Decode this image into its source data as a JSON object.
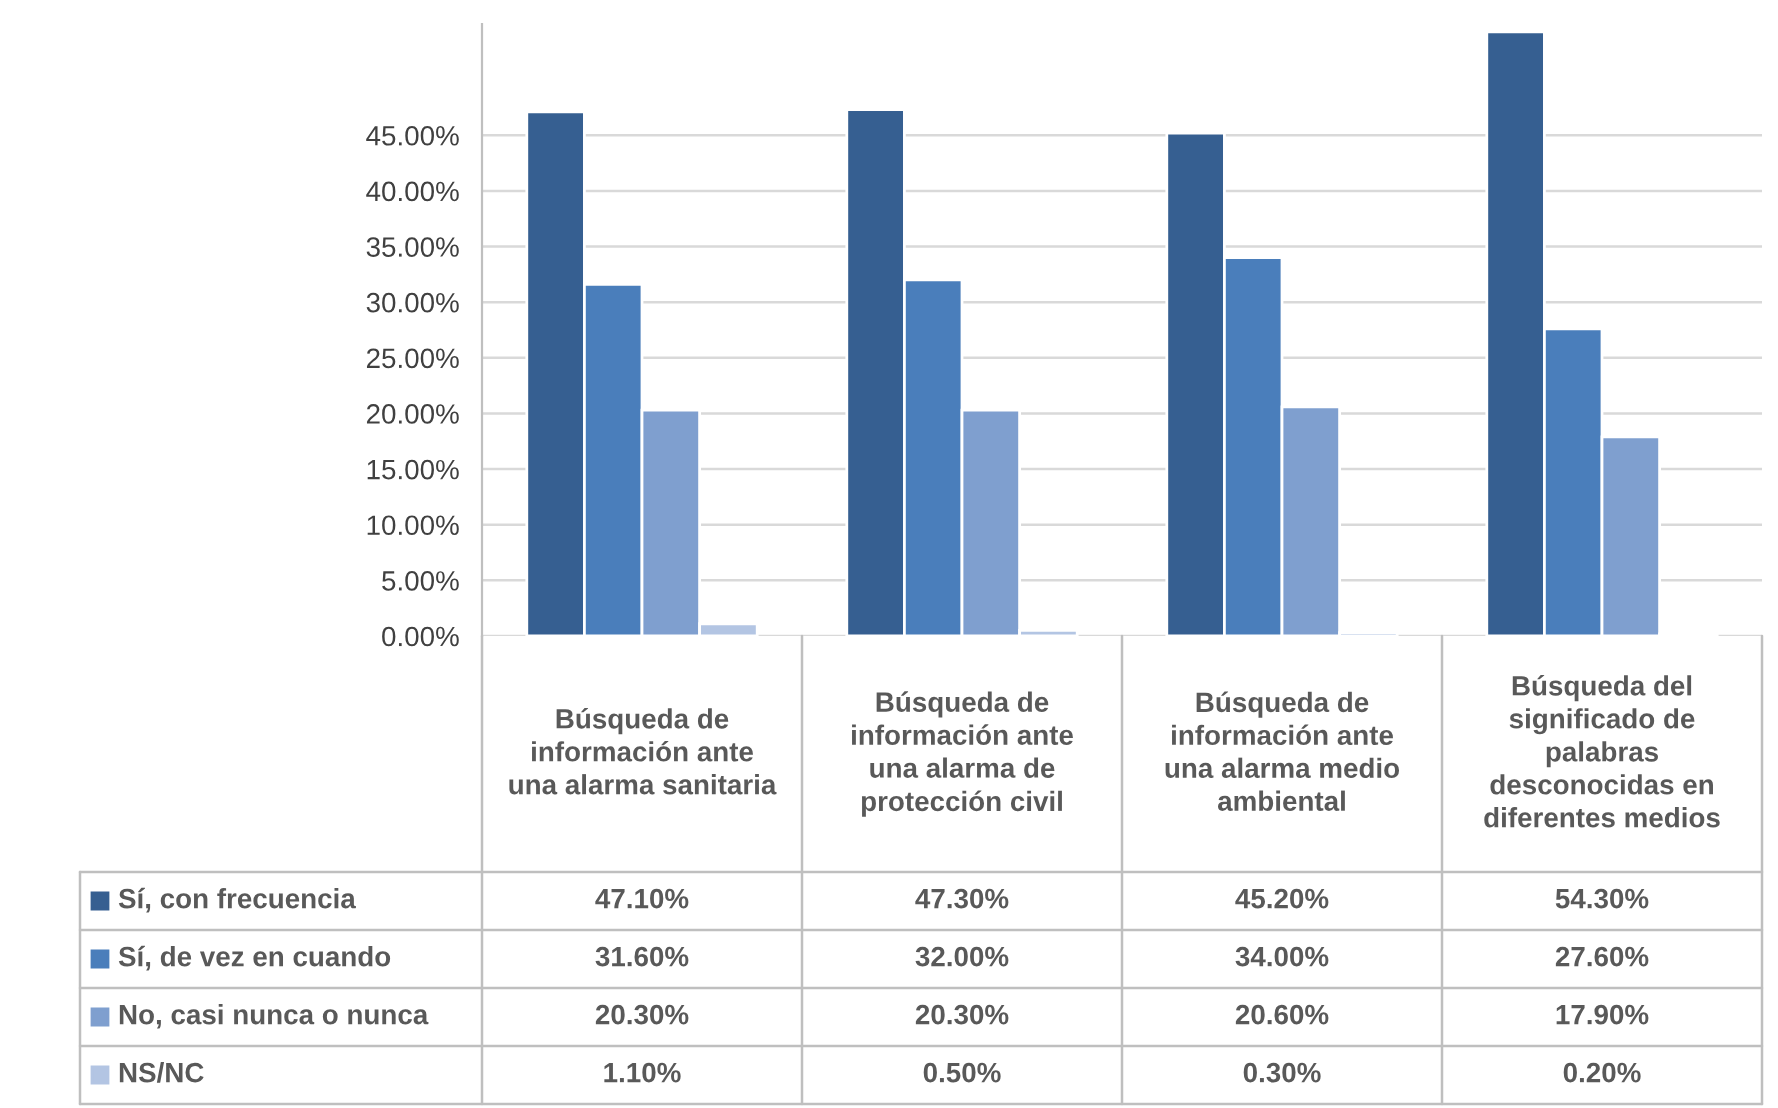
{
  "chart_data": {
    "type": "bar",
    "categories": [
      "Búsqueda de información ante una alarma sanitaria",
      "Búsqueda de información ante una alarma de protección civil",
      "Búsqueda de información ante una alarma medio ambiental",
      "Búsqueda del significado de palabras desconocidas en diferentes medios"
    ],
    "series": [
      {
        "name": "Sí, con frecuencia",
        "color": "#365f91",
        "values": [
          47.1,
          47.3,
          45.2,
          54.3
        ],
        "value_labels": [
          "47.10%",
          "47.30%",
          "45.20%",
          "54.30%"
        ]
      },
      {
        "name": "Sí, de vez en cuando",
        "color": "#4a7ebb",
        "values": [
          31.6,
          32.0,
          34.0,
          27.6
        ],
        "value_labels": [
          "31.60%",
          "32.00%",
          "34.00%",
          "27.60%"
        ]
      },
      {
        "name": "No, casi nunca o nunca",
        "color": "#7f9fcf",
        "values": [
          20.3,
          20.3,
          20.6,
          17.9
        ],
        "value_labels": [
          "20.30%",
          "20.30%",
          "20.60%",
          "17.90%"
        ]
      },
      {
        "name": "NS/NC",
        "color": "#b3c5e3",
        "values": [
          1.1,
          0.5,
          0.3,
          0.2
        ],
        "value_labels": [
          "1.10%",
          "0.50%",
          "0.30%",
          "0.20%"
        ]
      }
    ],
    "ylim": [
      0,
      55
    ],
    "yticks": [
      {
        "value": 0,
        "label": "0.00%"
      },
      {
        "value": 5,
        "label": "5.00%"
      },
      {
        "value": 10,
        "label": "10.00%"
      },
      {
        "value": 15,
        "label": "15.00%"
      },
      {
        "value": 20,
        "label": "20.00%"
      },
      {
        "value": 25,
        "label": "25.00%"
      },
      {
        "value": 30,
        "label": "30.00%"
      },
      {
        "value": 35,
        "label": "35.00%"
      },
      {
        "value": 40,
        "label": "40.00%"
      },
      {
        "value": 45,
        "label": "45.00%"
      }
    ],
    "grid": "y",
    "legend": "bottom left"
  }
}
